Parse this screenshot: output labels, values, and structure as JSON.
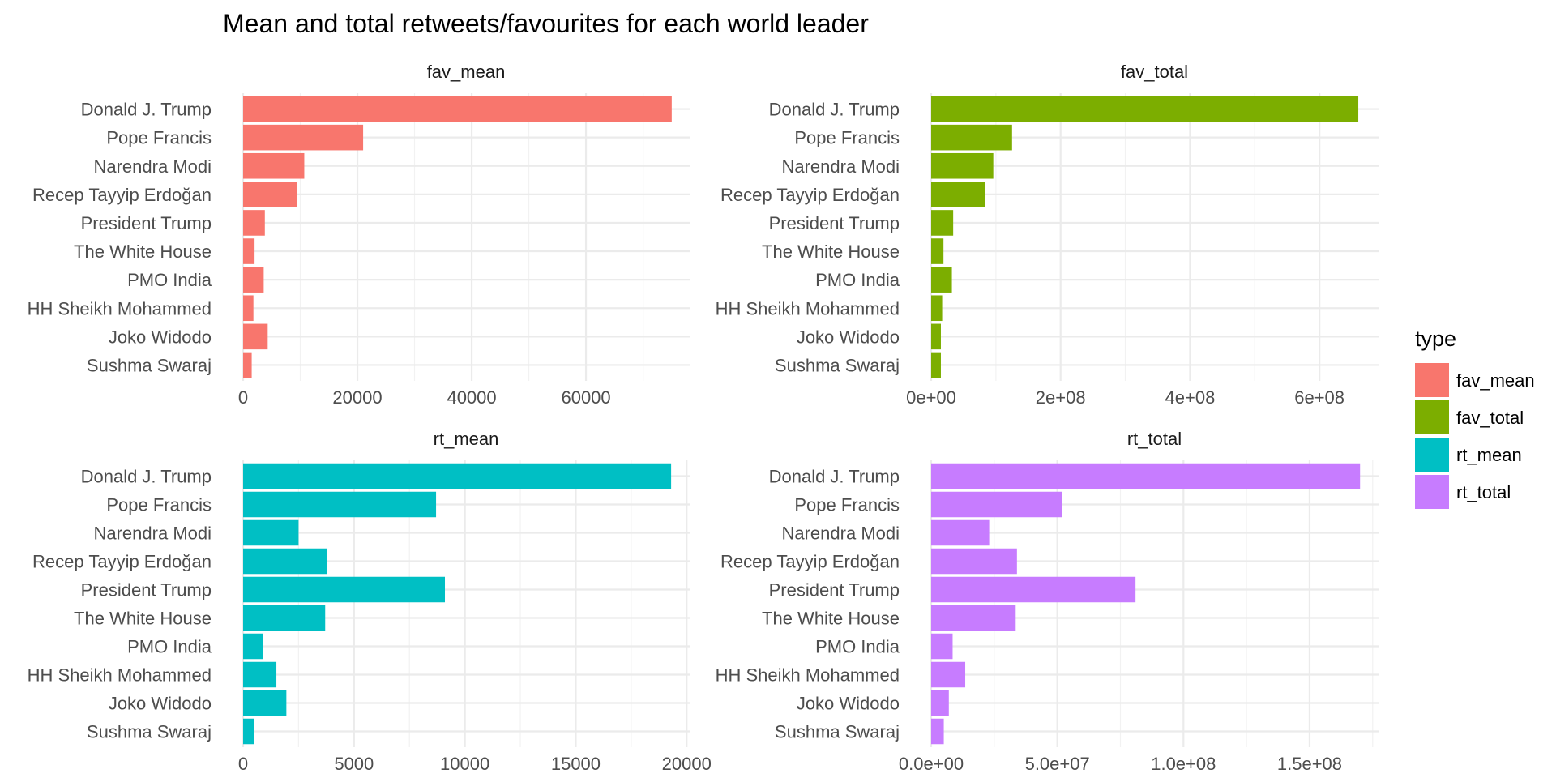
{
  "title": "Mean and total retweets/favourites for each world leader",
  "legend": {
    "title": "type",
    "position": "right",
    "items": [
      {
        "label": "fav_mean",
        "color": "#F8766D"
      },
      {
        "label": "fav_total",
        "color": "#7CAE00"
      },
      {
        "label": "rt_mean",
        "color": "#00BFC4"
      },
      {
        "label": "rt_total",
        "color": "#C77CFF"
      }
    ]
  },
  "chart_data": {
    "type": "bar",
    "orientation": "horizontal",
    "grid": true,
    "categories": [
      "Donald J. Trump",
      "Pope Francis",
      "Narendra Modi",
      "Recep Tayyip Erdoğan",
      "President Trump",
      "The White House",
      "PMO India",
      "HH Sheikh Mohammed",
      "Joko Widodo",
      "Sushma Swaraj"
    ],
    "panels": [
      {
        "name": "fav_mean",
        "color": "#F8766D",
        "values": [
          75000,
          21000,
          10700,
          9400,
          3800,
          2000,
          3600,
          1800,
          4300,
          1500
        ],
        "xlim": [
          0,
          78000
        ],
        "ticks": [
          {
            "v": 0,
            "label": "0"
          },
          {
            "v": 20000,
            "label": "20000"
          },
          {
            "v": 40000,
            "label": "40000"
          },
          {
            "v": 60000,
            "label": "60000"
          }
        ],
        "minor": [
          10000,
          30000,
          50000,
          70000
        ]
      },
      {
        "name": "fav_total",
        "color": "#7CAE00",
        "values": [
          660000000,
          125000000,
          96000000,
          83000000,
          34000000,
          19000000,
          32000000,
          17000000,
          15000000,
          15000000
        ],
        "xlim": [
          0,
          690000000
        ],
        "ticks": [
          {
            "v": 0,
            "label": "0e+00"
          },
          {
            "v": 200000000,
            "label": "2e+08"
          },
          {
            "v": 400000000,
            "label": "4e+08"
          },
          {
            "v": 600000000,
            "label": "6e+08"
          }
        ],
        "minor": [
          100000000,
          300000000,
          500000000
        ]
      },
      {
        "name": "rt_mean",
        "color": "#00BFC4",
        "values": [
          19300,
          8700,
          2500,
          3800,
          9100,
          3700,
          900,
          1500,
          1950,
          500
        ],
        "xlim": [
          0,
          20100
        ],
        "ticks": [
          {
            "v": 0,
            "label": "0"
          },
          {
            "v": 5000,
            "label": "5000"
          },
          {
            "v": 10000,
            "label": "10000"
          },
          {
            "v": 15000,
            "label": "15000"
          },
          {
            "v": 20000,
            "label": "20000"
          }
        ],
        "minor": [
          2500,
          7500,
          12500,
          17500
        ]
      },
      {
        "name": "rt_total",
        "color": "#C77CFF",
        "values": [
          170000000,
          52000000,
          23000000,
          34000000,
          81000000,
          33500000,
          8500000,
          13500000,
          7000000,
          5000000
        ],
        "xlim": [
          0,
          177000000
        ],
        "ticks": [
          {
            "v": 0,
            "label": "0.0e+00"
          },
          {
            "v": 50000000,
            "label": "5.0e+07"
          },
          {
            "v": 100000000,
            "label": "1.0e+08"
          },
          {
            "v": 150000000,
            "label": "1.5e+08"
          }
        ],
        "minor": [
          25000000,
          75000000,
          125000000,
          175000000
        ]
      }
    ]
  }
}
